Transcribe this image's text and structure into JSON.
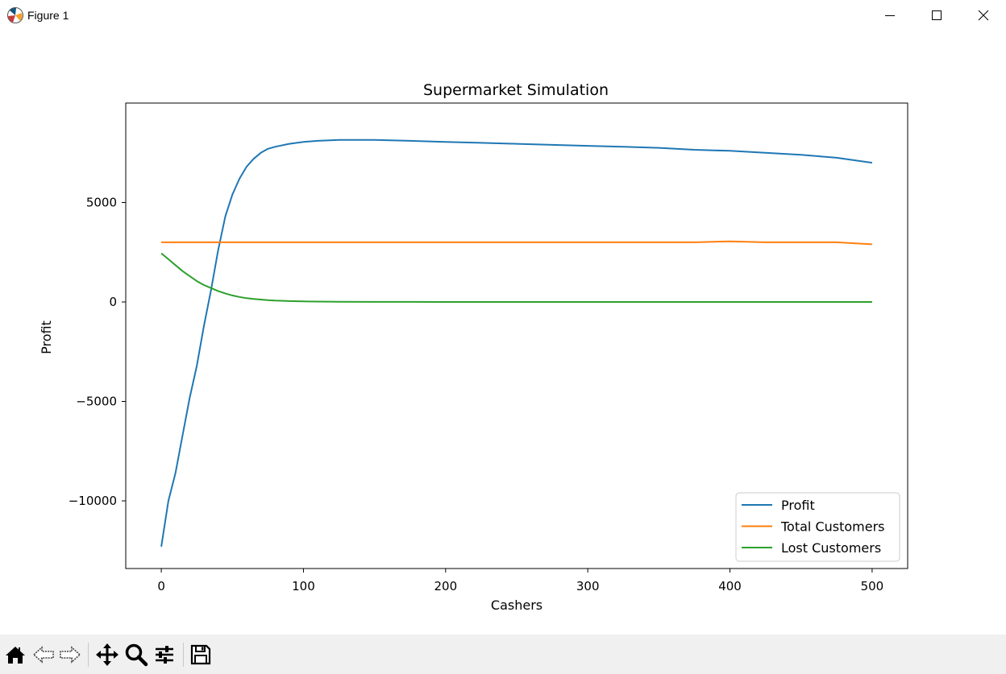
{
  "window": {
    "title": "Figure 1",
    "icons": [
      "matplotlib-icon",
      "minimize-icon",
      "maximize-icon",
      "close-icon"
    ]
  },
  "toolbar": {
    "icons": [
      "home-icon",
      "back-arrow-icon",
      "forward-arrow-icon",
      "pan-icon",
      "zoom-icon",
      "configure-subplots-icon",
      "save-icon"
    ]
  },
  "chart_data": {
    "type": "line",
    "title": "Supermarket Simulation",
    "xlabel": "Cashers",
    "ylabel": "Profit",
    "xlim": [
      -25,
      525
    ],
    "ylim": [
      -13400,
      10000
    ],
    "xticks": [
      0,
      100,
      200,
      300,
      400,
      500
    ],
    "xtick_labels": [
      "0",
      "100",
      "200",
      "300",
      "400",
      "500"
    ],
    "yticks": [
      -10000,
      -5000,
      0,
      5000
    ],
    "ytick_labels": [
      "−10000",
      "−5000",
      "0",
      "5000"
    ],
    "grid": false,
    "legend": "lower-right",
    "x": [
      0,
      5,
      10,
      15,
      20,
      25,
      30,
      35,
      40,
      45,
      50,
      55,
      60,
      65,
      70,
      75,
      80,
      90,
      100,
      110,
      125,
      150,
      175,
      200,
      225,
      250,
      275,
      300,
      325,
      350,
      375,
      400,
      425,
      450,
      475,
      500
    ],
    "series": [
      {
        "name": "Profit",
        "color": "#1f77b4",
        "values": [
          -12300,
          -10000,
          -8600,
          -6700,
          -4800,
          -3200,
          -1200,
          600,
          2600,
          4300,
          5400,
          6200,
          6800,
          7200,
          7500,
          7700,
          7800,
          7950,
          8050,
          8100,
          8150,
          8150,
          8100,
          8050,
          8000,
          7950,
          7900,
          7850,
          7800,
          7750,
          7650,
          7600,
          7500,
          7400,
          7250,
          7000
        ]
      },
      {
        "name": "Total Customers",
        "color": "#ff7f0e",
        "values": [
          3000,
          3000,
          3000,
          3000,
          3000,
          3000,
          3000,
          3000,
          3000,
          3000,
          3000,
          3000,
          3000,
          3000,
          3000,
          3000,
          3000,
          3000,
          3000,
          3000,
          3000,
          3000,
          3000,
          3000,
          3000,
          3000,
          3000,
          3000,
          3000,
          3000,
          3000,
          3050,
          3000,
          3000,
          3000,
          2900
        ]
      },
      {
        "name": "Lost Customers",
        "color": "#2ca02c",
        "values": [
          2450,
          2150,
          1850,
          1550,
          1300,
          1050,
          850,
          700,
          550,
          430,
          330,
          250,
          190,
          150,
          120,
          90,
          70,
          45,
          30,
          20,
          10,
          5,
          3,
          2,
          1,
          0,
          0,
          0,
          0,
          0,
          0,
          0,
          0,
          0,
          0,
          0
        ]
      }
    ]
  }
}
